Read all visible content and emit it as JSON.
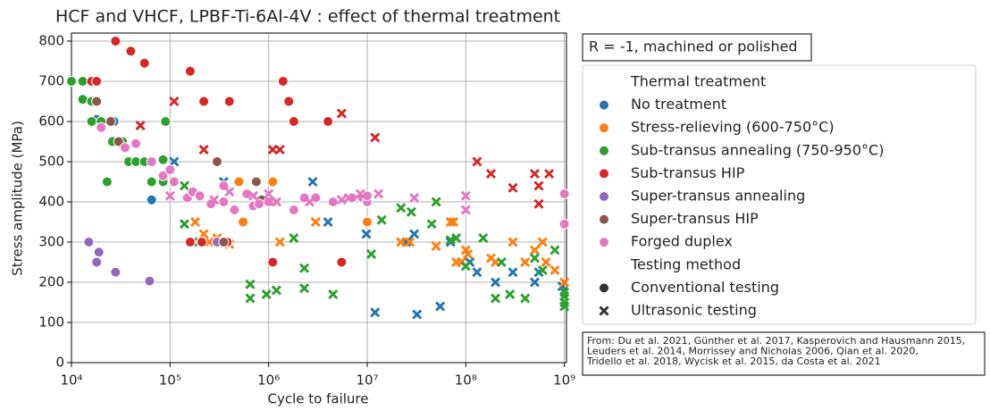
{
  "chart_data": {
    "type": "scatter",
    "title": "HCF and VHCF, LPBF-Ti-6Al-4V : effect of thermal treatment",
    "x_label": "Cycle to failure",
    "y_label": "Stress amplitude (MPa)",
    "xscale": "log",
    "grid": true,
    "xlim": [
      10000,
      1050000000
    ],
    "ylim": [
      0,
      820
    ],
    "xticks": [
      {
        "value": 10000,
        "label": "10⁴"
      },
      {
        "value": 100000,
        "label": "10⁵"
      },
      {
        "value": 1000000,
        "label": "10⁶"
      },
      {
        "value": 10000000,
        "label": "10⁷"
      },
      {
        "value": 100000000,
        "label": "10⁸"
      },
      {
        "value": 1000000000,
        "label": "10⁹"
      }
    ],
    "yticks": [
      0,
      100,
      200,
      300,
      400,
      500,
      600,
      700,
      800
    ],
    "annotation": "R = -1, machined or polished",
    "source": [
      "From: Du et al. 2021, Günther et al. 2017, Kasperovich and Hausmann 2015,",
      " Leuders et al. 2014, Morrissey and Nicholas 2006, Qian et al. 2020,",
      " Tridello et al. 2018, Wycisk et al. 2015, da Costa et al. 2021"
    ],
    "legend_title": "Thermal treatment",
    "style_title": "Testing method",
    "styles": [
      "Conventional testing",
      "Ultrasonic testing"
    ],
    "series": [
      {
        "name": "No treatment",
        "color": "#1f77b4",
        "conventional": {
          "x": [
            18000,
            27000,
            65000
          ],
          "values": [
            605,
            600,
            405
          ]
        },
        "ultrasonic": {
          "x": [
            110000,
            350000,
            2800000,
            4000000,
            9800000,
            12000000,
            32000000,
            55000000,
            30000000,
            70000000,
            110000000,
            130000000,
            200000000,
            300000000,
            500000000,
            550000000,
            950000000,
            25000000
          ],
          "values": [
            500,
            450,
            450,
            350,
            320,
            125,
            120,
            140,
            320,
            300,
            250,
            225,
            200,
            225,
            200,
            225,
            190,
            300
          ]
        }
      },
      {
        "name": "Stress-relieving (600-750°C)",
        "color": "#ff7f0e",
        "conventional": {
          "x": [
            500000,
            550000,
            1100000,
            1100000,
            10000000,
            4500000
          ],
          "values": [
            450,
            350,
            450,
            400,
            350,
            400
          ]
        },
        "ultrasonic": {
          "x": [
            180000,
            220000,
            250000,
            300000,
            400000,
            3000000,
            1300000,
            22000000,
            27000000,
            50000000,
            70000000,
            80000000,
            90000000,
            100000000,
            180000000,
            200000000,
            300000000,
            400000000,
            500000000,
            600000000,
            650000000,
            800000000,
            1000000000,
            105000000,
            75000000
          ],
          "values": [
            350,
            320,
            300,
            310,
            295,
            350,
            300,
            300,
            300,
            290,
            350,
            250,
            250,
            280,
            260,
            250,
            300,
            250,
            280,
            300,
            250,
            230,
            200,
            270,
            350
          ]
        }
      },
      {
        "name": "Sub-transus annealing (750-950°C)",
        "color": "#2ca02c",
        "conventional": {
          "x": [
            10000,
            13000,
            13000,
            16000,
            16000,
            20000,
            23000,
            26000,
            33000,
            38000,
            45000,
            55000,
            65000,
            85000,
            90000,
            85000,
            18000
          ],
          "values": [
            700,
            700,
            655,
            650,
            600,
            600,
            450,
            550,
            550,
            500,
            500,
            500,
            450,
            450,
            600,
            505,
            650
          ]
        },
        "ultrasonic": {
          "x": [
            140000,
            140000,
            170000,
            650000,
            650000,
            950000,
            1200000,
            1800000,
            2300000,
            2300000,
            4500000,
            11000000,
            14000000,
            22000000,
            28000000,
            45000000,
            50000000,
            70000000,
            80000000,
            150000000,
            200000000,
            280000000,
            400000000,
            500000000,
            600000000,
            800000000,
            1000000000,
            1000000000,
            1000000000,
            1000000000,
            100000000,
            230000000
          ],
          "values": [
            345,
            440,
            300,
            160,
            195,
            170,
            180,
            310,
            185,
            235,
            170,
            270,
            355,
            385,
            375,
            345,
            400,
            305,
            310,
            310,
            160,
            170,
            160,
            260,
            230,
            280,
            175,
            165,
            140,
            150,
            240,
            250
          ]
        }
      },
      {
        "name": "Sub-transus HIP",
        "color": "#d62728",
        "conventional": {
          "x": [
            16000,
            18000,
            28000,
            40000,
            55000,
            160000,
            220000,
            400000,
            1400000,
            1600000,
            1800000,
            4000000,
            160000,
            210000,
            380000,
            1100000,
            5500000
          ],
          "values": [
            700,
            700,
            800,
            775,
            745,
            725,
            650,
            650,
            700,
            650,
            600,
            600,
            300,
            300,
            300,
            250,
            250
          ]
        },
        "ultrasonic": {
          "x": [
            50000,
            110000,
            220000,
            1100000,
            1300000,
            5500000,
            12000000,
            130000000,
            180000000,
            300000000,
            500000000,
            550000000,
            700000000,
            550000000
          ],
          "values": [
            590,
            650,
            530,
            530,
            530,
            620,
            560,
            500,
            470,
            435,
            470,
            440,
            470,
            395
          ]
        }
      },
      {
        "name": "Super-transus annealing",
        "color": "#9467bd",
        "conventional": {
          "x": [
            15000,
            18000,
            19000,
            28000,
            62000,
            300000
          ],
          "values": [
            300,
            250,
            275,
            225,
            203,
            300
          ]
        },
        "ultrasonic": {
          "x": [],
          "values": []
        }
      },
      {
        "name": "Super-transus HIP",
        "color": "#8c564b",
        "conventional": {
          "x": [
            18000,
            25000,
            30000,
            300000,
            350000,
            750000,
            850000
          ],
          "values": [
            650,
            600,
            550,
            500,
            300,
            450,
            405
          ]
        },
        "ultrasonic": {
          "x": [],
          "values": []
        }
      },
      {
        "name": "Forged duplex",
        "color": "#e377c2",
        "conventional": {
          "x": [
            20000,
            35000,
            45000,
            65000,
            85000,
            100000,
            110000,
            150000,
            170000,
            200000,
            260000,
            350000,
            350000,
            450000,
            600000,
            700000,
            800000,
            1000000,
            1800000,
            2300000,
            3000000,
            4500000,
            7000000,
            9000000,
            10000000,
            10000000,
            1000000000,
            1000000000
          ],
          "values": [
            585,
            535,
            545,
            500,
            465,
            480,
            450,
            410,
            425,
            415,
            395,
            400,
            440,
            380,
            420,
            390,
            395,
            400,
            380,
            410,
            410,
            400,
            410,
            410,
            400,
            415,
            420,
            345
          ]
        },
        "ultrasonic": {
          "x": [
            100000,
            280000,
            400000,
            700000,
            1000000,
            1200000,
            2600000,
            5500000,
            6500000,
            8500000,
            13000000,
            30000000,
            100000000,
            100000000
          ],
          "values": [
            415,
            405,
            425,
            415,
            420,
            400,
            400,
            405,
            410,
            420,
            420,
            410,
            415,
            380
          ]
        }
      }
    ]
  }
}
